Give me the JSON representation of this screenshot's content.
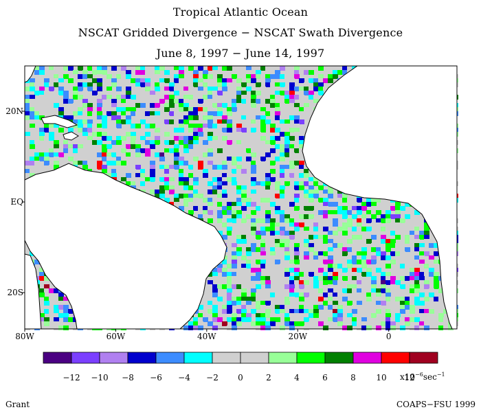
{
  "header": {
    "line1": "Tropical Atlantic Ocean",
    "line2": "NSCAT Gridded Divergence − NSCAT Swath Divergence",
    "line3": "June 8, 1997 − June 14, 1997"
  },
  "map": {
    "lon_range": [
      -80,
      15
    ],
    "lat_range": [
      -28,
      30
    ],
    "lon_ticks": [
      {
        "lon": -80,
        "label": "80W"
      },
      {
        "lon": -60,
        "label": "60W"
      },
      {
        "lon": -40,
        "label": "40W"
      },
      {
        "lon": -20,
        "label": "20W"
      },
      {
        "lon": 0,
        "label": "0"
      }
    ],
    "lat_ticks": [
      {
        "lat": 20,
        "label": "20N"
      },
      {
        "lat": 0,
        "label": "EQ"
      },
      {
        "lat": -20,
        "label": "20S"
      }
    ],
    "land_color": "#ffffff",
    "coast_color": "#000000"
  },
  "colorbar": {
    "colors": [
      "#4b0082",
      "#7b3fff",
      "#b080f0",
      "#0000cd",
      "#3c8cff",
      "#00ffff",
      "#d0d0d0",
      "#d0d0d0",
      "#98ff98",
      "#00ff00",
      "#008000",
      "#e000e0",
      "#ff0000",
      "#a00020"
    ],
    "labels": [
      "−12",
      "−10",
      "−8",
      "−6",
      "−4",
      "−2",
      "0",
      "2",
      "4",
      "6",
      "8",
      "10",
      "12"
    ],
    "units_base": "x10",
    "units_exp": "−6",
    "units_rest": "sec",
    "units_exp2": "−1"
  },
  "footer": {
    "left": "Grant",
    "right": "COAPS−FSU 1999"
  }
}
